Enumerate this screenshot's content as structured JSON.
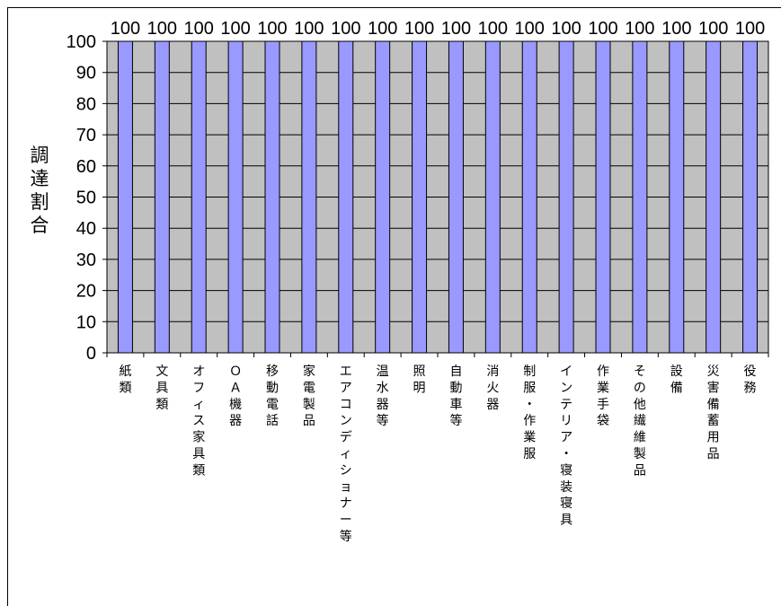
{
  "chart_data": {
    "type": "bar",
    "title": "",
    "xlabel": "",
    "ylabel": "調達割合",
    "ylim": [
      0,
      100
    ],
    "yticks": [
      0,
      10,
      20,
      30,
      40,
      50,
      60,
      70,
      80,
      90,
      100
    ],
    "grid": true,
    "legend": "none",
    "categories": [
      "紙類",
      "文具類",
      "オフィス家具類",
      "ＯＡ機器",
      "移動電話",
      "家電製品",
      "エアコンディショナー等",
      "温水器等",
      "照明",
      "自動車等",
      "消火器",
      "制服・作業服",
      "インテリア・寝装寝具",
      "作業手袋",
      "その他繊維製品",
      "設備",
      "災害備蓄用品",
      "役務"
    ],
    "values": [
      100,
      100,
      100,
      100,
      100,
      100,
      100,
      100,
      100,
      100,
      100,
      100,
      100,
      100,
      100,
      100,
      100,
      100
    ],
    "data_labels": [
      "100",
      "100",
      "100",
      "100",
      "100",
      "100",
      "100",
      "100",
      "100",
      "100",
      "100",
      "100",
      "100",
      "100",
      "100",
      "100",
      "100",
      "100"
    ],
    "colors": {
      "bar": "#9999ff",
      "bar_border": "#000000",
      "plot_bg": "#c0c0c0",
      "grid": "#000000"
    }
  }
}
